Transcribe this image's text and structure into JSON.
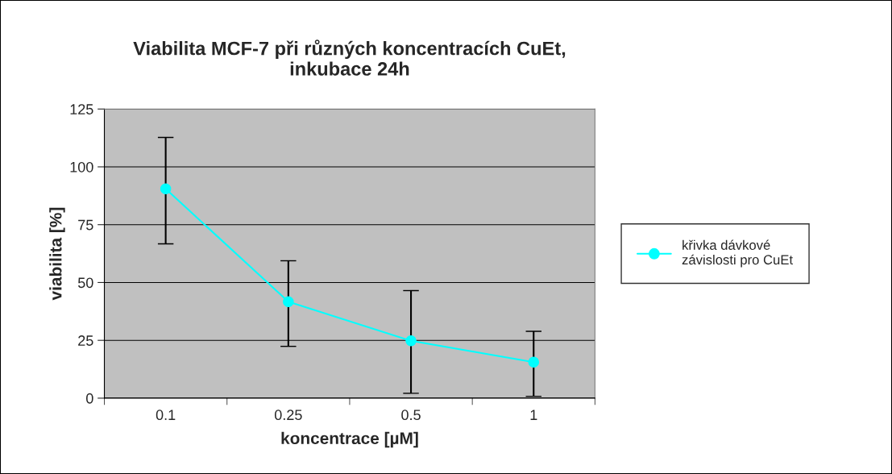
{
  "chart_data": {
    "type": "line",
    "title": "Viabilita MCF-7 při různých koncentracích CuEt,\ninkubace 24h",
    "xlabel": "koncentrace [µM]",
    "ylabel": "viabilita [%]",
    "categories": [
      "0.1",
      "0.25",
      "0.5",
      "1"
    ],
    "series": [
      {
        "name": "křivka dávkové\nzávislosti pro CuEt",
        "color": "#00ffff",
        "values": [
          90.5,
          41.7,
          24.8,
          15.6
        ],
        "errors": [
          [
            66.7,
            112.7
          ],
          [
            22.4,
            59.4
          ],
          [
            2.1,
            46.5
          ],
          [
            0.8,
            28.9
          ]
        ]
      }
    ],
    "ylim": [
      0,
      125
    ],
    "yticks": [
      0,
      25,
      50,
      75,
      100,
      125
    ],
    "grid": "y",
    "legend": "right",
    "marker": "circle",
    "line_style": "solid"
  }
}
